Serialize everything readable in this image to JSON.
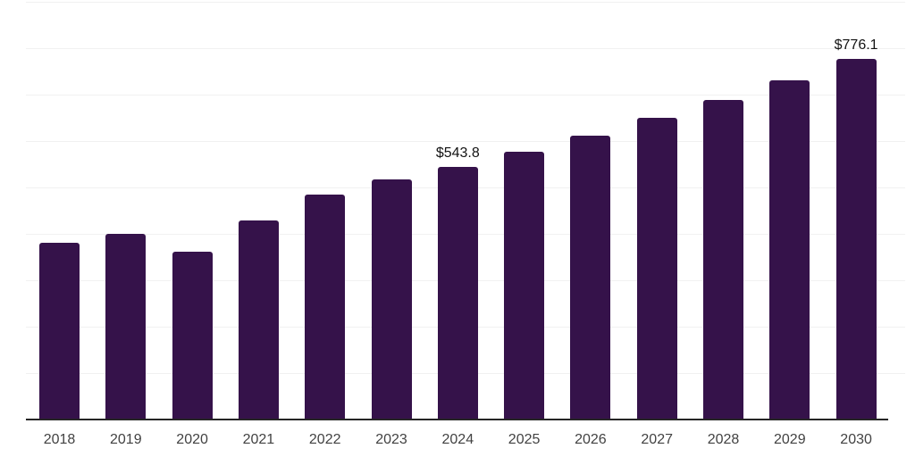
{
  "chart_data": {
    "type": "bar",
    "categories": [
      "2018",
      "2019",
      "2020",
      "2021",
      "2022",
      "2023",
      "2024",
      "2025",
      "2026",
      "2027",
      "2028",
      "2029",
      "2030"
    ],
    "values": [
      380.5,
      400.5,
      361.5,
      429.0,
      484.0,
      516.8,
      543.8,
      577.0,
      612.3,
      649.6,
      689.3,
      731.4,
      776.1
    ],
    "bar_labels": [
      "",
      "",
      "",
      "",
      "",
      "",
      "$543.8",
      "",
      "",
      "",
      "",
      "",
      "$776.1"
    ],
    "ylim": [
      0,
      900
    ],
    "gridline_step_value": 100,
    "grid": "horizontal-only",
    "legend_position": "none",
    "y_axis_labels_visible": false,
    "colors": {
      "bar": "#35124a",
      "axis_line": "#262626",
      "gridline": "#f1f1f1",
      "tick_label": "#424242",
      "data_label": "#131313",
      "background": "#ffffff"
    }
  }
}
